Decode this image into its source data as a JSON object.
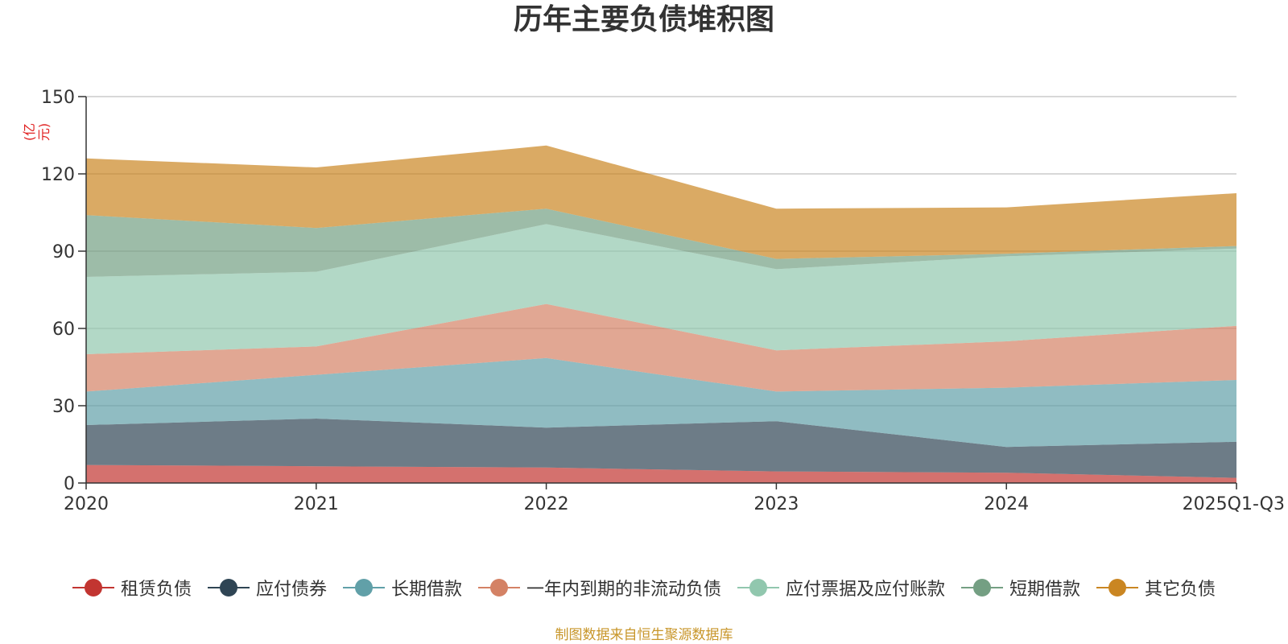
{
  "chart_data": {
    "type": "area",
    "stacked": true,
    "title": "历年主要负债堆积图",
    "unit": "(亿元)",
    "categories": [
      "2020",
      "2021",
      "2022",
      "2023",
      "2024",
      "2025Q1-Q3"
    ],
    "y_ticks": [
      "0",
      "30",
      "60",
      "90",
      "120",
      "150"
    ],
    "ylim": [
      0,
      150
    ],
    "grid": true,
    "legend_position": "bottom",
    "series": [
      {
        "name": "租赁负债",
        "values": [
          7,
          6.5,
          6,
          4.5,
          4,
          2
        ],
        "color": "#c23531"
      },
      {
        "name": "应付债券",
        "values": [
          15.5,
          18.5,
          15.5,
          19.5,
          10,
          14
        ],
        "color": "#2f4554"
      },
      {
        "name": "长期借款",
        "values": [
          13,
          17,
          27,
          11.5,
          23,
          24
        ],
        "color": "#61a0a8"
      },
      {
        "name": "一年内到期的非流动负债",
        "values": [
          14.5,
          11,
          21,
          16,
          18,
          21
        ],
        "color": "#d48265"
      },
      {
        "name": "应付票据及应付账款",
        "values": [
          30,
          29,
          31,
          31.5,
          33,
          30
        ],
        "color": "#91c7ae"
      },
      {
        "name": "短期借款",
        "values": [
          24,
          17,
          6,
          4,
          1,
          1
        ],
        "color": "#749f83"
      },
      {
        "name": "其它负债",
        "values": [
          22,
          23.5,
          24.5,
          19.5,
          18,
          20.5
        ],
        "color": "#ca8622"
      }
    ],
    "source": "制图数据来自恒生聚源数据库"
  }
}
